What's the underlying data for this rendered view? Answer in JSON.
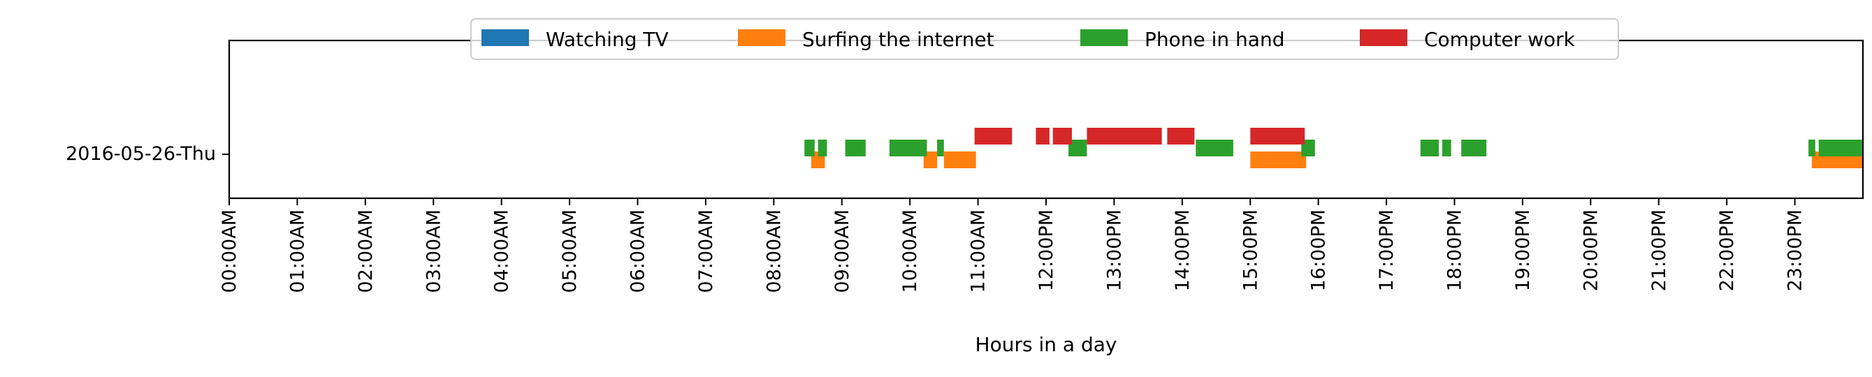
{
  "chart_data": {
    "type": "broken_barh",
    "title": "",
    "xlabel": "Hours in a day",
    "ylabel": "",
    "xlim": [
      0,
      24
    ],
    "y_categories": [
      "2016-05-26-Thu"
    ],
    "x_tick_labels": [
      "00:00AM",
      "01:00AM",
      "02:00AM",
      "03:00AM",
      "04:00AM",
      "05:00AM",
      "06:00AM",
      "07:00AM",
      "08:00AM",
      "09:00AM",
      "10:00AM",
      "11:00AM",
      "12:00PM",
      "13:00PM",
      "14:00PM",
      "15:00PM",
      "16:00PM",
      "17:00PM",
      "18:00PM",
      "19:00PM",
      "20:00PM",
      "21:00PM",
      "22:00PM",
      "23:00PM"
    ],
    "legend_position": "top-center",
    "series": [
      {
        "name": "Watching TV",
        "color": "#1f77b4",
        "lane": 0,
        "intervals": []
      },
      {
        "name": "Surfing the internet",
        "color": "#ff7f0e",
        "lane": 1,
        "intervals": [
          [
            8.55,
            8.75
          ],
          [
            10.2,
            10.4
          ],
          [
            10.5,
            10.97
          ],
          [
            15.0,
            15.82
          ],
          [
            23.25,
            24.0
          ]
        ]
      },
      {
        "name": "Phone in hand",
        "color": "#2ca02c",
        "lane": 2,
        "intervals": [
          [
            8.45,
            8.6
          ],
          [
            8.65,
            8.78
          ],
          [
            9.05,
            9.35
          ],
          [
            9.7,
            10.25
          ],
          [
            10.4,
            10.5
          ],
          [
            12.33,
            12.6
          ],
          [
            14.2,
            14.75
          ],
          [
            15.75,
            15.95
          ],
          [
            17.5,
            17.77
          ],
          [
            17.82,
            17.95
          ],
          [
            18.1,
            18.47
          ],
          [
            23.2,
            23.3
          ],
          [
            23.35,
            24.0
          ]
        ]
      },
      {
        "name": "Computer work",
        "color": "#d62728",
        "lane": 3,
        "intervals": [
          [
            10.95,
            11.5
          ],
          [
            11.85,
            12.05
          ],
          [
            12.1,
            12.38
          ],
          [
            12.6,
            13.7
          ],
          [
            13.78,
            14.18
          ],
          [
            15.0,
            15.8
          ]
        ]
      }
    ]
  }
}
